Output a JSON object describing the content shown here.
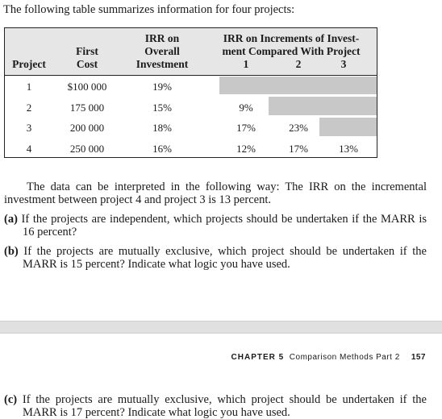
{
  "intro": "The following table summarizes information for four projects:",
  "table": {
    "headers": {
      "project": "Project",
      "first_cost_1": "First",
      "first_cost_2": "Cost",
      "irr_1": "IRR on",
      "irr_2": "Overall",
      "irr_3": "Investment",
      "inc_1": "IRR on Increments of Invest-",
      "inc_2": "ment Compared With Project",
      "inc_col1": "1",
      "inc_col2": "2",
      "inc_col3": "3"
    },
    "rows": [
      {
        "project": "1",
        "cost": "$100 000",
        "irr": "19%",
        "inc1": "",
        "inc2": "",
        "inc3": ""
      },
      {
        "project": "2",
        "cost": "175 000",
        "irr": "15%",
        "inc1": "9%",
        "inc2": "",
        "inc3": ""
      },
      {
        "project": "3",
        "cost": "200 000",
        "irr": "18%",
        "inc1": "17%",
        "inc2": "23%",
        "inc3": ""
      },
      {
        "project": "4",
        "cost": "250 000",
        "irr": "16%",
        "inc1": "12%",
        "inc2": "17%",
        "inc3": "13%"
      }
    ]
  },
  "interpretation": {
    "line1": "The data can be interpreted in the following way: The IRR on the incremental",
    "line2": "investment between project 4 and project 3 is 13 percent."
  },
  "questions": [
    {
      "label": "(a)",
      "line1": "If the projects are independent, which projects should be undertaken if the MARR is",
      "line2": "16 percent?"
    },
    {
      "label": "(b)",
      "line1": "If the projects are mutually exclusive, which project should be undertaken if the",
      "line2": "MARR is 15 percent? Indicate what logic you have used."
    },
    {
      "label": "(c)",
      "line1": "If the projects are mutually exclusive, which project should be undertaken if the",
      "line2": "MARR is 17 percent? Indicate what logic you have used."
    }
  ],
  "footer": {
    "chapter": "CHAPTER 5",
    "title": "Comparison Methods Part 2",
    "page": "157"
  }
}
